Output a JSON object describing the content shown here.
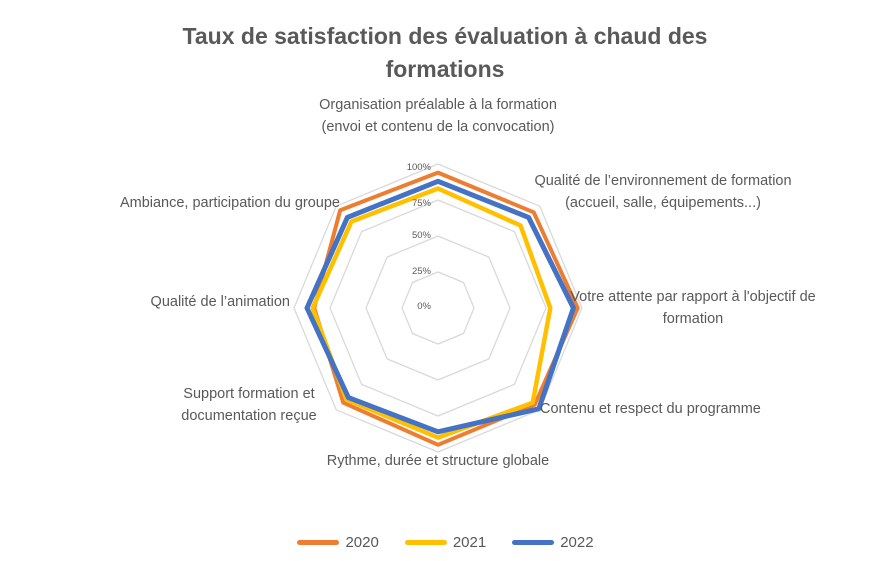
{
  "title": "Taux de satisfaction des évaluation à chaud des formations",
  "chart_data": {
    "type": "radar",
    "categories": [
      "Organisation préalable à la formation (envoi et contenu de la convocation)",
      "Qualité de l’environnement de formation (accueil, salle, équipements...)",
      "Votre attente par rapport à l'objectif de formation",
      "Contenu et respect du programme",
      "Rythme, durée et structure globale",
      "Support formation et documentation reçue",
      "Qualité de l’animation",
      "Ambiance, participation du groupe"
    ],
    "series": [
      {
        "name": "2020",
        "color": "#ED7D31",
        "values": [
          94,
          94,
          97,
          95,
          95,
          93,
          86,
          96
        ]
      },
      {
        "name": "2021",
        "color": "#FFC000",
        "values": [
          83,
          81,
          78,
          93,
          90,
          90,
          87,
          85
        ]
      },
      {
        "name": "2022",
        "color": "#4472C4",
        "values": [
          88,
          89,
          94,
          99,
          86,
          88,
          91,
          89
        ]
      }
    ],
    "axis": {
      "min": 0,
      "max": 100,
      "ticks": [
        "0%",
        "25%",
        "50%",
        "75%",
        "100%"
      ],
      "grid_color": "#D9D9D9",
      "grid_levels": [
        25,
        50,
        75,
        100
      ]
    },
    "legend_position": "bottom"
  },
  "legend": {
    "items": [
      {
        "label": "2020",
        "color": "#ED7D31"
      },
      {
        "label": "2021",
        "color": "#FFC000"
      },
      {
        "label": "2022",
        "color": "#4472C4"
      }
    ]
  }
}
